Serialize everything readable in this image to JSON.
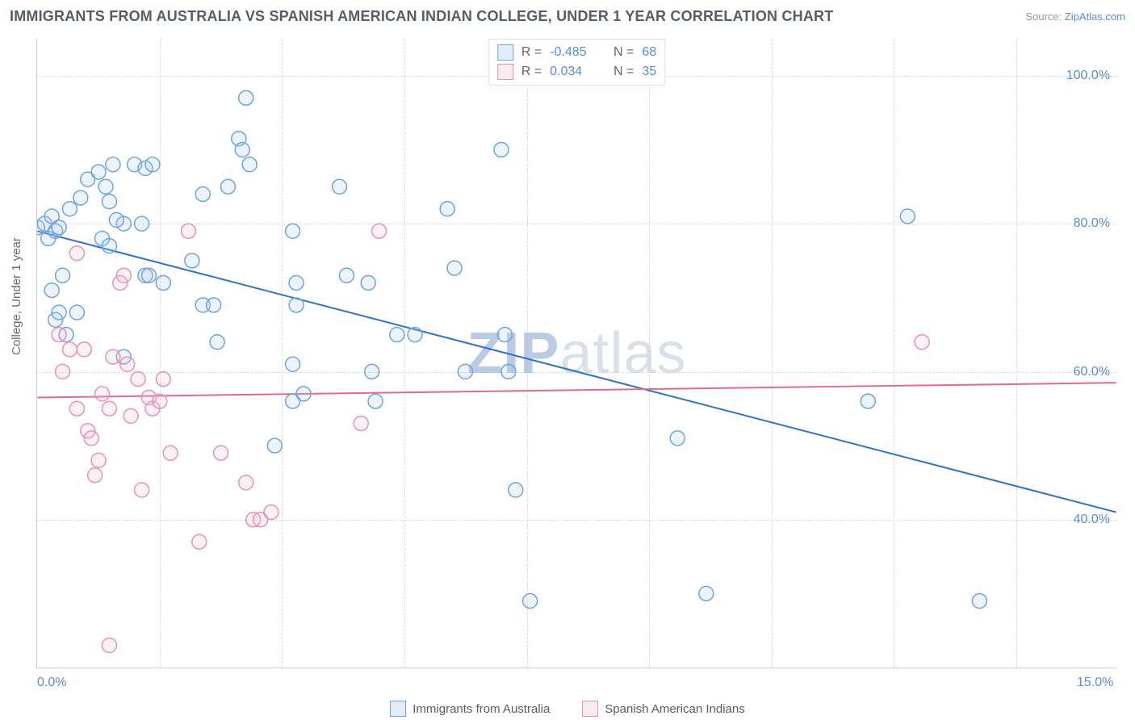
{
  "header": {
    "title": "IMMIGRANTS FROM AUSTRALIA VS SPANISH AMERICAN INDIAN COLLEGE, UNDER 1 YEAR CORRELATION CHART",
    "source_prefix": "Source: ",
    "source_link": "ZipAtlas.com"
  },
  "chart": {
    "type": "scatter",
    "y_axis_label": "College, Under 1 year",
    "background_color": "#ffffff",
    "grid_color": "#d7dade",
    "border_color": "#c9cdd3",
    "xlim": [
      0,
      15
    ],
    "ylim": [
      20,
      105
    ],
    "x_ticks": [
      0,
      15
    ],
    "x_tick_labels": [
      "0.0%",
      "15.0%"
    ],
    "x_minor_gridlines": [
      1.7,
      3.4,
      5.1,
      6.8,
      8.5,
      10.2,
      11.9,
      13.6
    ],
    "y_ticks": [
      40,
      60,
      80,
      100
    ],
    "y_tick_labels": [
      "40.0%",
      "60.0%",
      "80.0%",
      "100.0%"
    ],
    "watermark": {
      "zip": "ZIP",
      "atlas": "atlas"
    },
    "marker_radius": 9,
    "marker_stroke_width": 1.5,
    "marker_fill_opacity": 0.22,
    "line_width": 2,
    "series": [
      {
        "name": "Immigrants from Australia",
        "R": "-0.485",
        "N": "68",
        "color_stroke": "#6fa3e0",
        "color_fill": "#a9c8ec",
        "trend_color": "#2f72c8",
        "trend": {
          "x1": 0,
          "y1": 79,
          "x2": 15,
          "y2": 41
        },
        "points": [
          [
            0.0,
            79.5
          ],
          [
            0.1,
            80
          ],
          [
            0.15,
            78
          ],
          [
            0.2,
            81
          ],
          [
            0.25,
            79
          ],
          [
            0.3,
            79.5
          ],
          [
            0.35,
            73
          ],
          [
            0.2,
            71
          ],
          [
            0.25,
            67
          ],
          [
            0.3,
            68
          ],
          [
            0.45,
            82
          ],
          [
            0.6,
            83.5
          ],
          [
            0.7,
            86
          ],
          [
            0.85,
            87
          ],
          [
            0.95,
            85
          ],
          [
            1.05,
            88
          ],
          [
            1.35,
            88
          ],
          [
            1.5,
            87.5
          ],
          [
            1.6,
            88
          ],
          [
            1.0,
            83
          ],
          [
            1.2,
            80
          ],
          [
            1.1,
            80.5
          ],
          [
            1.45,
            80
          ],
          [
            1.5,
            73
          ],
          [
            1.55,
            73
          ],
          [
            2.3,
            84
          ],
          [
            2.15,
            75
          ],
          [
            2.3,
            69
          ],
          [
            2.45,
            69
          ],
          [
            2.5,
            64
          ],
          [
            2.65,
            85
          ],
          [
            2.9,
            97
          ],
          [
            2.8,
            91.5
          ],
          [
            2.85,
            90
          ],
          [
            2.95,
            88
          ],
          [
            3.3,
            50
          ],
          [
            3.55,
            79
          ],
          [
            3.6,
            72
          ],
          [
            3.6,
            69
          ],
          [
            3.55,
            61
          ],
          [
            3.55,
            56
          ],
          [
            3.7,
            57
          ],
          [
            4.2,
            85
          ],
          [
            4.3,
            73
          ],
          [
            4.6,
            72
          ],
          [
            4.65,
            60
          ],
          [
            4.7,
            56
          ],
          [
            5.0,
            65
          ],
          [
            5.25,
            65
          ],
          [
            5.7,
            82
          ],
          [
            5.8,
            74
          ],
          [
            5.95,
            60
          ],
          [
            6.45,
            90
          ],
          [
            6.5,
            65
          ],
          [
            6.55,
            60
          ],
          [
            6.65,
            44
          ],
          [
            6.85,
            29
          ],
          [
            8.9,
            51
          ],
          [
            9.3,
            30
          ],
          [
            11.55,
            56
          ],
          [
            12.1,
            81
          ],
          [
            13.1,
            29
          ],
          [
            0.9,
            78
          ],
          [
            1.0,
            77
          ],
          [
            1.75,
            72
          ],
          [
            0.55,
            68
          ],
          [
            0.4,
            65
          ],
          [
            1.2,
            62
          ]
        ]
      },
      {
        "name": "Spanish American Indians",
        "R": "0.034",
        "N": "35",
        "color_stroke": "#e693ab",
        "color_fill": "#f4c1d0",
        "trend_color": "#e26a8e",
        "trend": {
          "x1": 0,
          "y1": 56.5,
          "x2": 15,
          "y2": 58.5
        },
        "points": [
          [
            0.3,
            65
          ],
          [
            0.35,
            60
          ],
          [
            0.45,
            63
          ],
          [
            0.55,
            76
          ],
          [
            0.65,
            63
          ],
          [
            0.7,
            52
          ],
          [
            0.75,
            51
          ],
          [
            0.85,
            48
          ],
          [
            0.9,
            57
          ],
          [
            1.0,
            55
          ],
          [
            1.05,
            62
          ],
          [
            1.15,
            72
          ],
          [
            1.2,
            73
          ],
          [
            1.25,
            61
          ],
          [
            1.3,
            54
          ],
          [
            1.4,
            59
          ],
          [
            1.55,
            56.5
          ],
          [
            1.6,
            55
          ],
          [
            1.7,
            56
          ],
          [
            1.75,
            59
          ],
          [
            1.85,
            49
          ],
          [
            2.1,
            79
          ],
          [
            2.25,
            37
          ],
          [
            2.55,
            49
          ],
          [
            2.9,
            45
          ],
          [
            3.0,
            40
          ],
          [
            3.1,
            40
          ],
          [
            3.25,
            41
          ],
          [
            4.5,
            53
          ],
          [
            4.75,
            79
          ],
          [
            0.8,
            46
          ],
          [
            1.0,
            23
          ],
          [
            1.45,
            44
          ],
          [
            12.3,
            64
          ],
          [
            0.55,
            55
          ]
        ]
      }
    ],
    "footer_legend": [
      {
        "label": "Immigrants from Australia",
        "stroke": "#6fa3e0",
        "fill": "#a9c8ec"
      },
      {
        "label": "Spanish American Indians",
        "stroke": "#e693ab",
        "fill": "#f4c1d0"
      }
    ]
  }
}
